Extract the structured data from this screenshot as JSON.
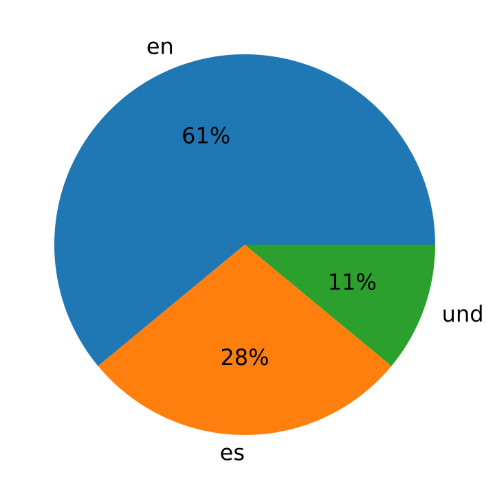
{
  "chart_data": {
    "type": "pie",
    "categories": [
      "en",
      "es",
      "und"
    ],
    "values": [
      61,
      28,
      11
    ],
    "value_labels": [
      "61%",
      "28%",
      "11%"
    ],
    "colors": [
      "#1f77b4",
      "#ff7f0e",
      "#2ca02c"
    ]
  }
}
